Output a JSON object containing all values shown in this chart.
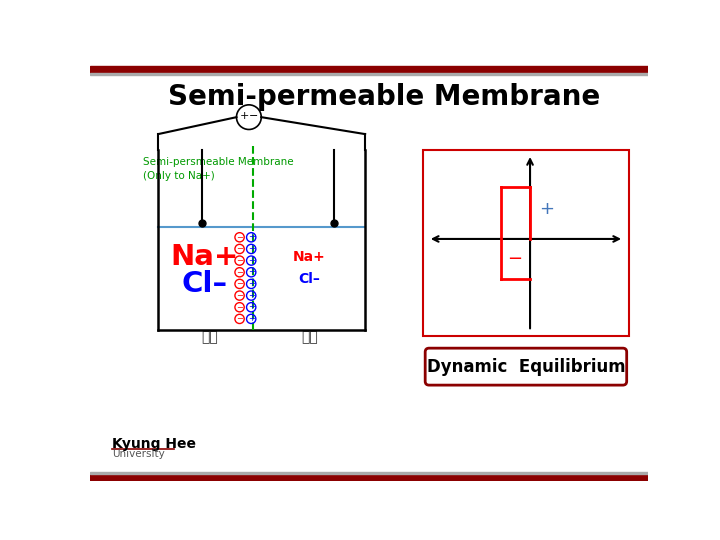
{
  "title": "Semi-permeable Membrane",
  "title_color": "#000000",
  "title_fontsize": 20,
  "bg_color": "#ffffff",
  "top_bar_color": "#8B0000",
  "label_green": "Semi-persmeable Membrane\n(Only to Na+)",
  "label_green_color": "#009900",
  "na_plus_left": "Na+",
  "cl_minus_left": "Cl–",
  "na_plus_right": "Na+",
  "cl_minus_right": "Cl–",
  "neutral_left": "중성",
  "neutral_right": "중성",
  "dynamic_equilibrium": "Dynamic  Equilibrium",
  "kyung_hee": "Kyung Hee",
  "university": "University"
}
